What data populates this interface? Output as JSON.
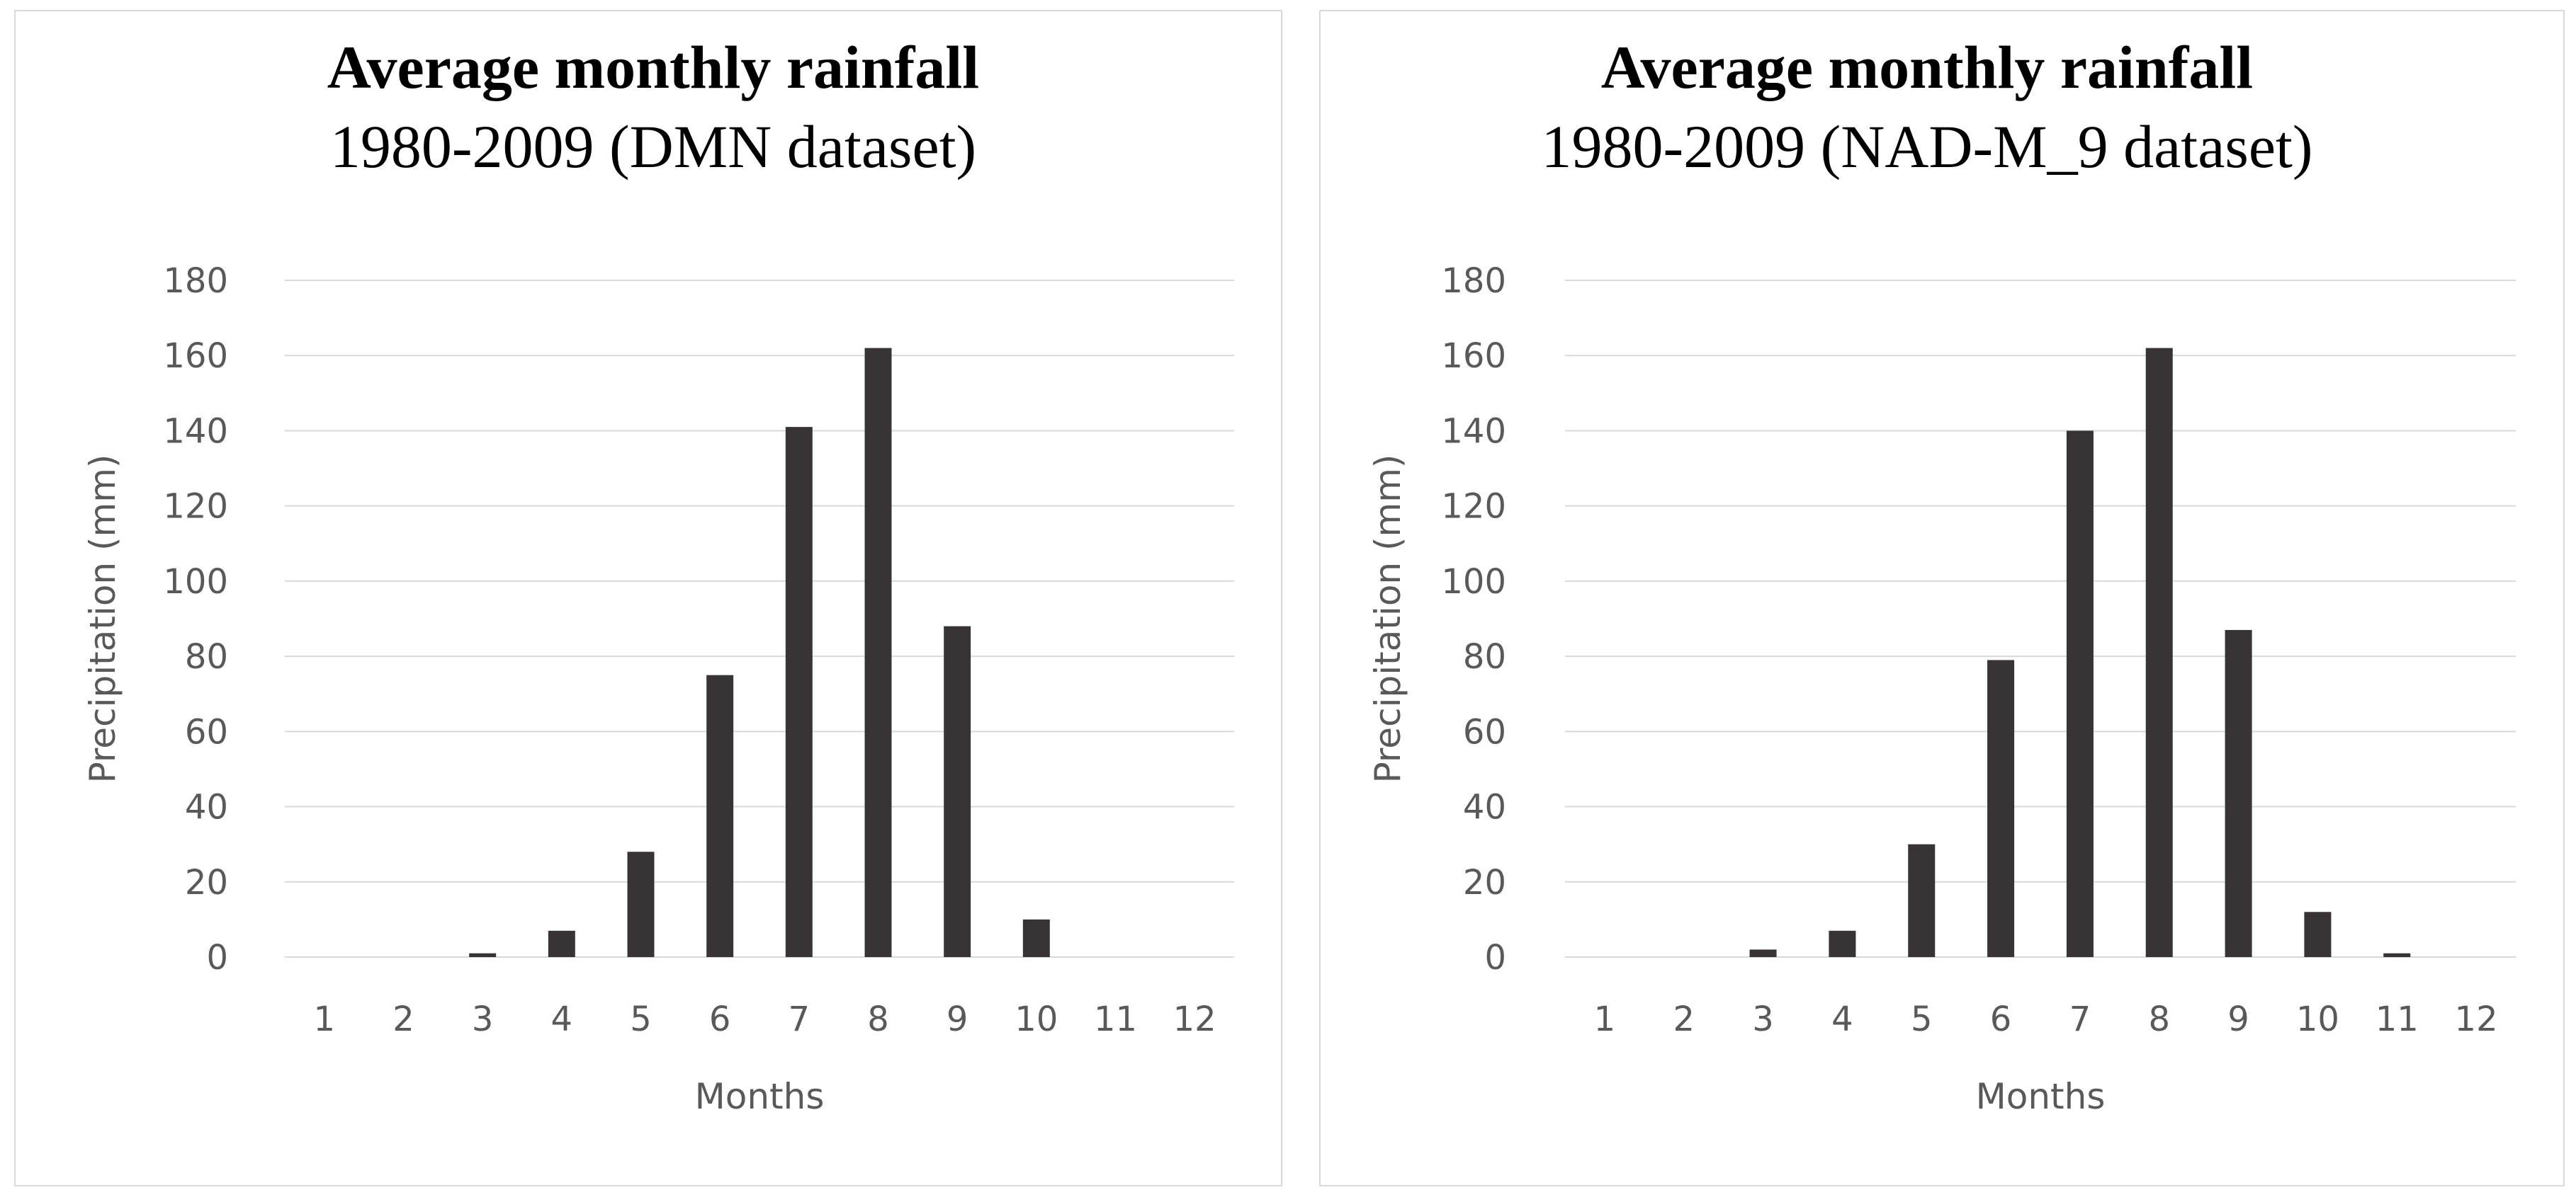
{
  "colors": {
    "bar": "#383435",
    "grid": "#d9d9d9",
    "axis_text": "#595959",
    "title": "#000000",
    "panel_border": "#d9d9d9"
  },
  "chart_data": [
    {
      "type": "bar",
      "title": "Average monthly rainfall",
      "subtitle": "1980-2009 (DMN dataset)",
      "xlabel": "Months",
      "ylabel": "Precipitation (mm)",
      "categories": [
        "1",
        "2",
        "3",
        "4",
        "5",
        "6",
        "7",
        "8",
        "9",
        "10",
        "11",
        "12"
      ],
      "values": [
        0,
        0,
        1,
        7,
        28,
        75,
        141,
        162,
        88,
        10,
        0,
        0
      ],
      "ylim": [
        0,
        180
      ],
      "yticks": [
        "0",
        "20",
        "40",
        "60",
        "80",
        "100",
        "120",
        "140",
        "160",
        "180"
      ],
      "grid": true,
      "legend": "none"
    },
    {
      "type": "bar",
      "title": "Average monthly rainfall",
      "subtitle": "1980-2009 (NAD-M_9 dataset)",
      "xlabel": "Months",
      "ylabel": "Precipitation (mm)",
      "categories": [
        "1",
        "2",
        "3",
        "4",
        "5",
        "6",
        "7",
        "8",
        "9",
        "10",
        "11",
        "12"
      ],
      "values": [
        0,
        0,
        2,
        7,
        30,
        79,
        140,
        162,
        87,
        12,
        1,
        0
      ],
      "ylim": [
        0,
        180
      ],
      "yticks": [
        "0",
        "20",
        "40",
        "60",
        "80",
        "100",
        "120",
        "140",
        "160",
        "180"
      ],
      "grid": true,
      "legend": "none"
    }
  ]
}
